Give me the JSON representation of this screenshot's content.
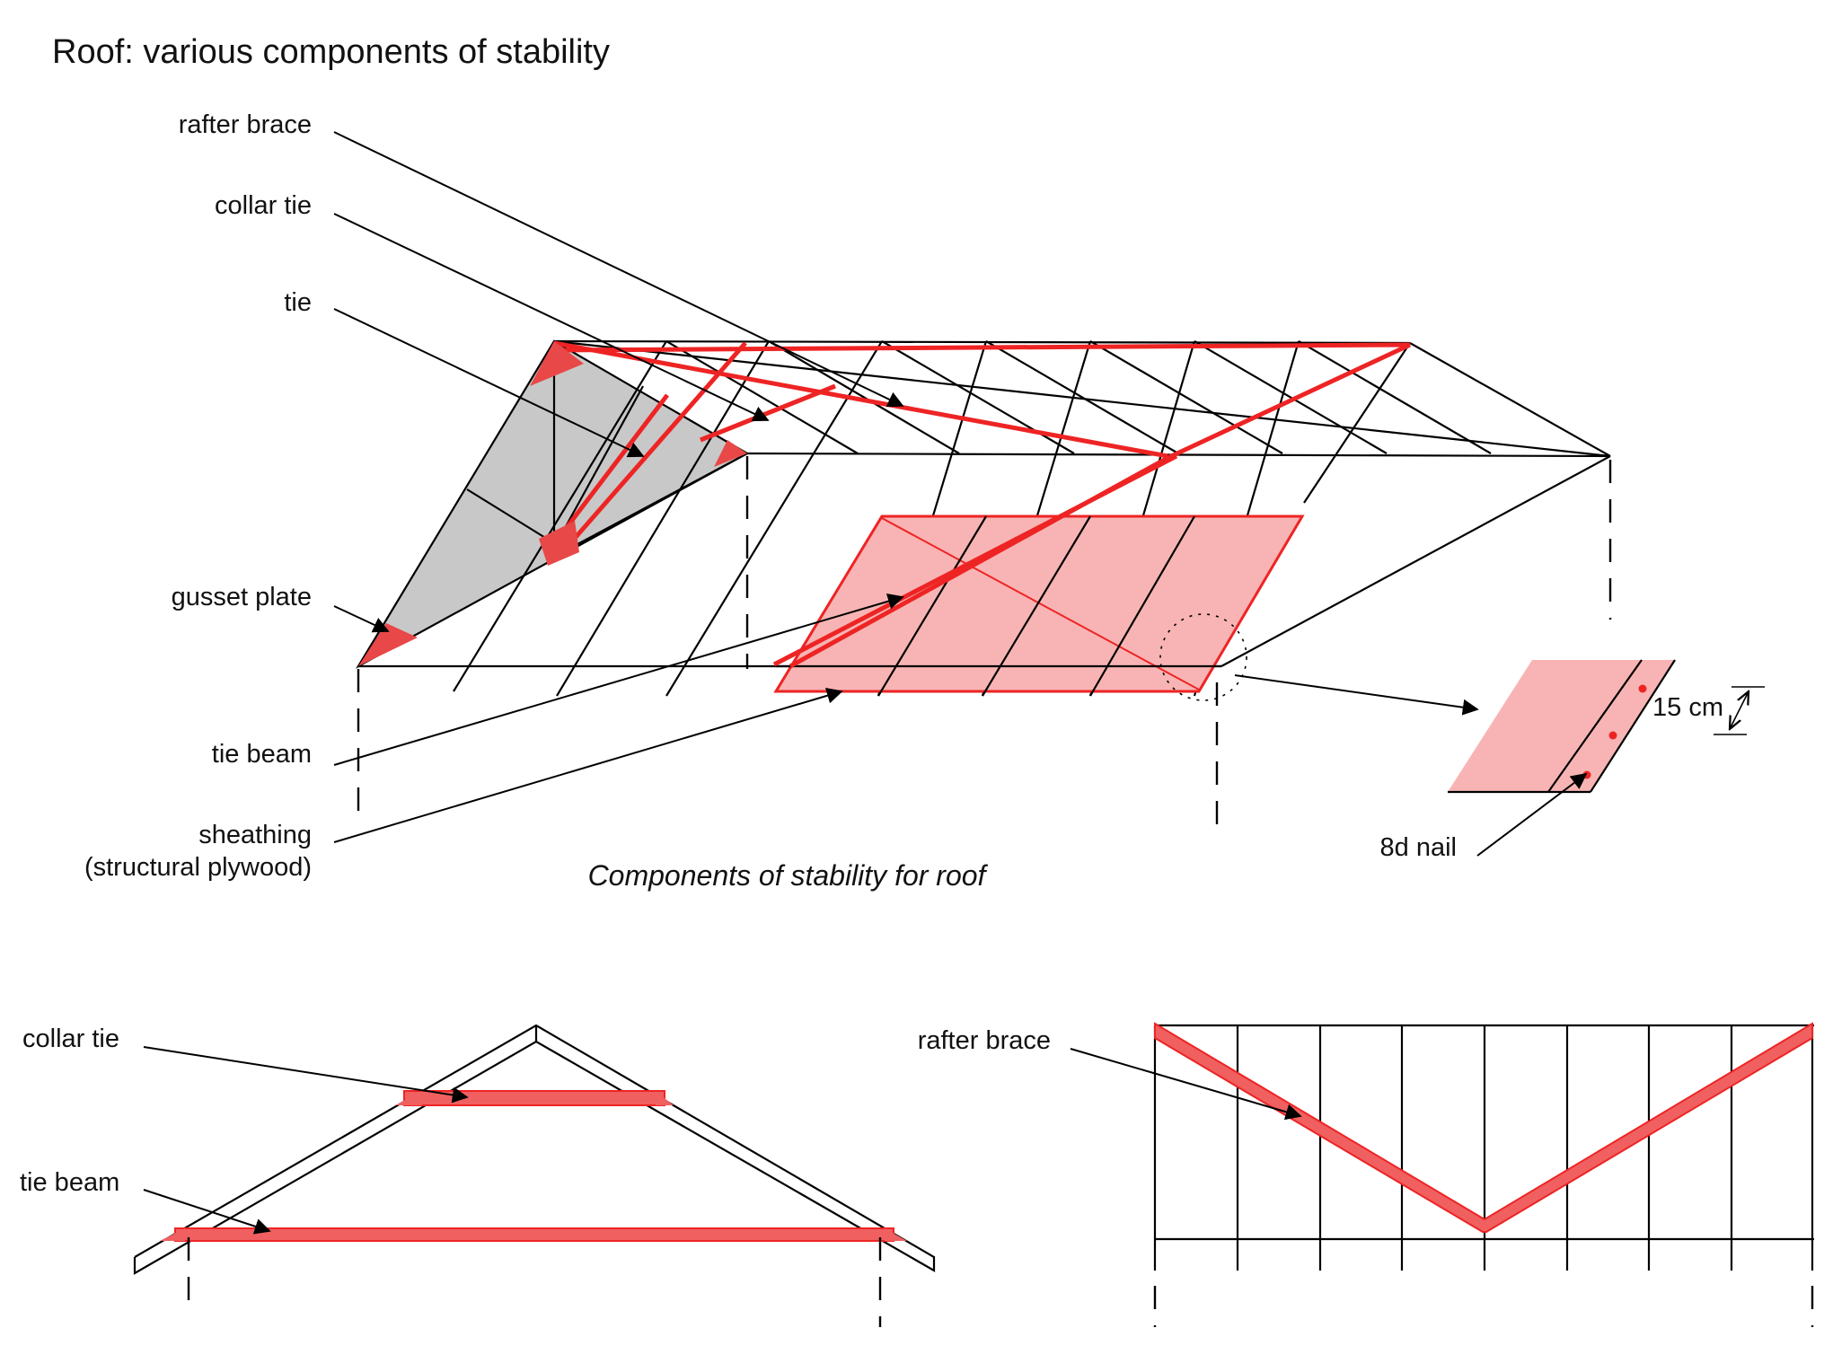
{
  "title": "Roof: various components of stability",
  "main_diagram": {
    "labels": {
      "rafter_brace": "rafter brace",
      "collar_tie": "collar tie",
      "tie": "tie",
      "gusset_plate": "gusset plate",
      "tie_beam": "tie beam",
      "sheathing_line1": "sheathing",
      "sheathing_line2": "(structural plywood)"
    },
    "caption": "Components of stability for roof"
  },
  "nail_detail": {
    "spacing_label": "15 cm",
    "nail_label": "8d nail"
  },
  "truss_section": {
    "labels": {
      "collar_tie": "collar tie",
      "tie_beam": "tie beam"
    }
  },
  "brace_elevation": {
    "labels": {
      "rafter_brace": "rafter brace"
    }
  },
  "colors": {
    "structure": "#000000",
    "highlight_red": "#ee2424",
    "panel_pink": "#f8b4b4",
    "gable_gray": "#c8c8c8"
  }
}
